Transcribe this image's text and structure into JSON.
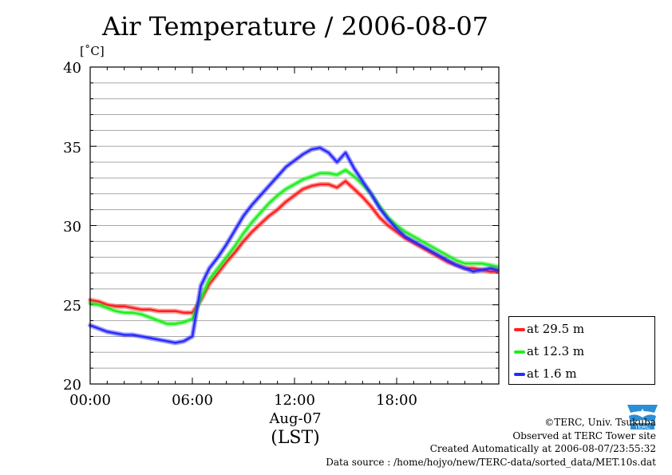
{
  "chart_data": {
    "type": "line",
    "title": "Air Temperature / 2006-08-07",
    "ylabel": "[˚C]",
    "xlabel": "(LST)",
    "date_label": "Aug-07",
    "ylim": [
      20,
      40
    ],
    "xlim": [
      0,
      24
    ],
    "yticks": [
      "20",
      "25",
      "30",
      "35",
      "40"
    ],
    "xticks": [
      "00:00",
      "06:00",
      "12:00",
      "18:00"
    ],
    "grid": true,
    "legend_position": "bottom-right, outside plot",
    "x_hours": [
      0,
      0.5,
      1,
      1.5,
      2,
      2.5,
      3,
      3.5,
      4,
      4.5,
      5,
      5.5,
      6,
      6.5,
      7,
      7.5,
      8,
      8.5,
      9,
      9.5,
      10,
      10.5,
      11,
      11.5,
      12,
      12.5,
      13,
      13.5,
      14,
      14.5,
      15,
      15.5,
      16,
      16.5,
      17,
      17.5,
      18,
      18.5,
      19,
      19.5,
      20,
      20.5,
      21,
      21.5,
      22,
      22.5,
      23,
      23.5,
      23.9
    ],
    "series": [
      {
        "name": "at 29.5 m",
        "color": "#ff2020",
        "values": [
          25.3,
          25.2,
          25.0,
          24.9,
          24.9,
          24.8,
          24.7,
          24.7,
          24.6,
          24.6,
          24.6,
          24.5,
          24.5,
          25.3,
          26.3,
          27.0,
          27.7,
          28.3,
          29.0,
          29.6,
          30.1,
          30.6,
          31.0,
          31.5,
          31.9,
          32.3,
          32.5,
          32.6,
          32.6,
          32.4,
          32.8,
          32.3,
          31.8,
          31.2,
          30.5,
          30.0,
          29.6,
          29.2,
          28.9,
          28.6,
          28.3,
          28.0,
          27.7,
          27.5,
          27.3,
          27.3,
          27.2,
          27.1,
          27.1
        ]
      },
      {
        "name": "at 12.3 m",
        "color": "#20ee20",
        "values": [
          25.1,
          25.0,
          24.8,
          24.6,
          24.5,
          24.5,
          24.4,
          24.2,
          24.0,
          23.8,
          23.8,
          23.9,
          24.1,
          25.4,
          26.6,
          27.3,
          28.0,
          28.7,
          29.5,
          30.2,
          30.8,
          31.4,
          31.9,
          32.3,
          32.6,
          32.9,
          33.1,
          33.3,
          33.3,
          33.2,
          33.5,
          33.1,
          32.6,
          32.0,
          31.2,
          30.5,
          30.0,
          29.6,
          29.3,
          29.0,
          28.7,
          28.4,
          28.1,
          27.8,
          27.6,
          27.6,
          27.6,
          27.5,
          27.4
        ]
      },
      {
        "name": "at 1.6 m",
        "color": "#2a2aff",
        "values": [
          23.7,
          23.5,
          23.3,
          23.2,
          23.1,
          23.1,
          23.0,
          22.9,
          22.8,
          22.7,
          22.6,
          22.7,
          23.0,
          26.2,
          27.3,
          28.0,
          28.8,
          29.7,
          30.6,
          31.3,
          31.9,
          32.5,
          33.1,
          33.7,
          34.1,
          34.5,
          34.8,
          34.9,
          34.6,
          34.0,
          34.6,
          33.6,
          32.8,
          32.0,
          31.1,
          30.4,
          29.8,
          29.3,
          29.0,
          28.7,
          28.4,
          28.1,
          27.8,
          27.5,
          27.3,
          27.1,
          27.2,
          27.3,
          27.2
        ]
      }
    ]
  },
  "credits": {
    "copyright": "©TERC, Univ. Tsukuba",
    "observed": "Observed at TERC Tower site",
    "created": "Created Automatically at 2006-08-07/23:55:32",
    "source": "Data source : /home/hojyo/new/TERC-data/sorted_data/MET.10s.dat"
  },
  "logo": {
    "name": "terc-logo-icon",
    "label": "TERC",
    "color": "#2a8fd6"
  }
}
